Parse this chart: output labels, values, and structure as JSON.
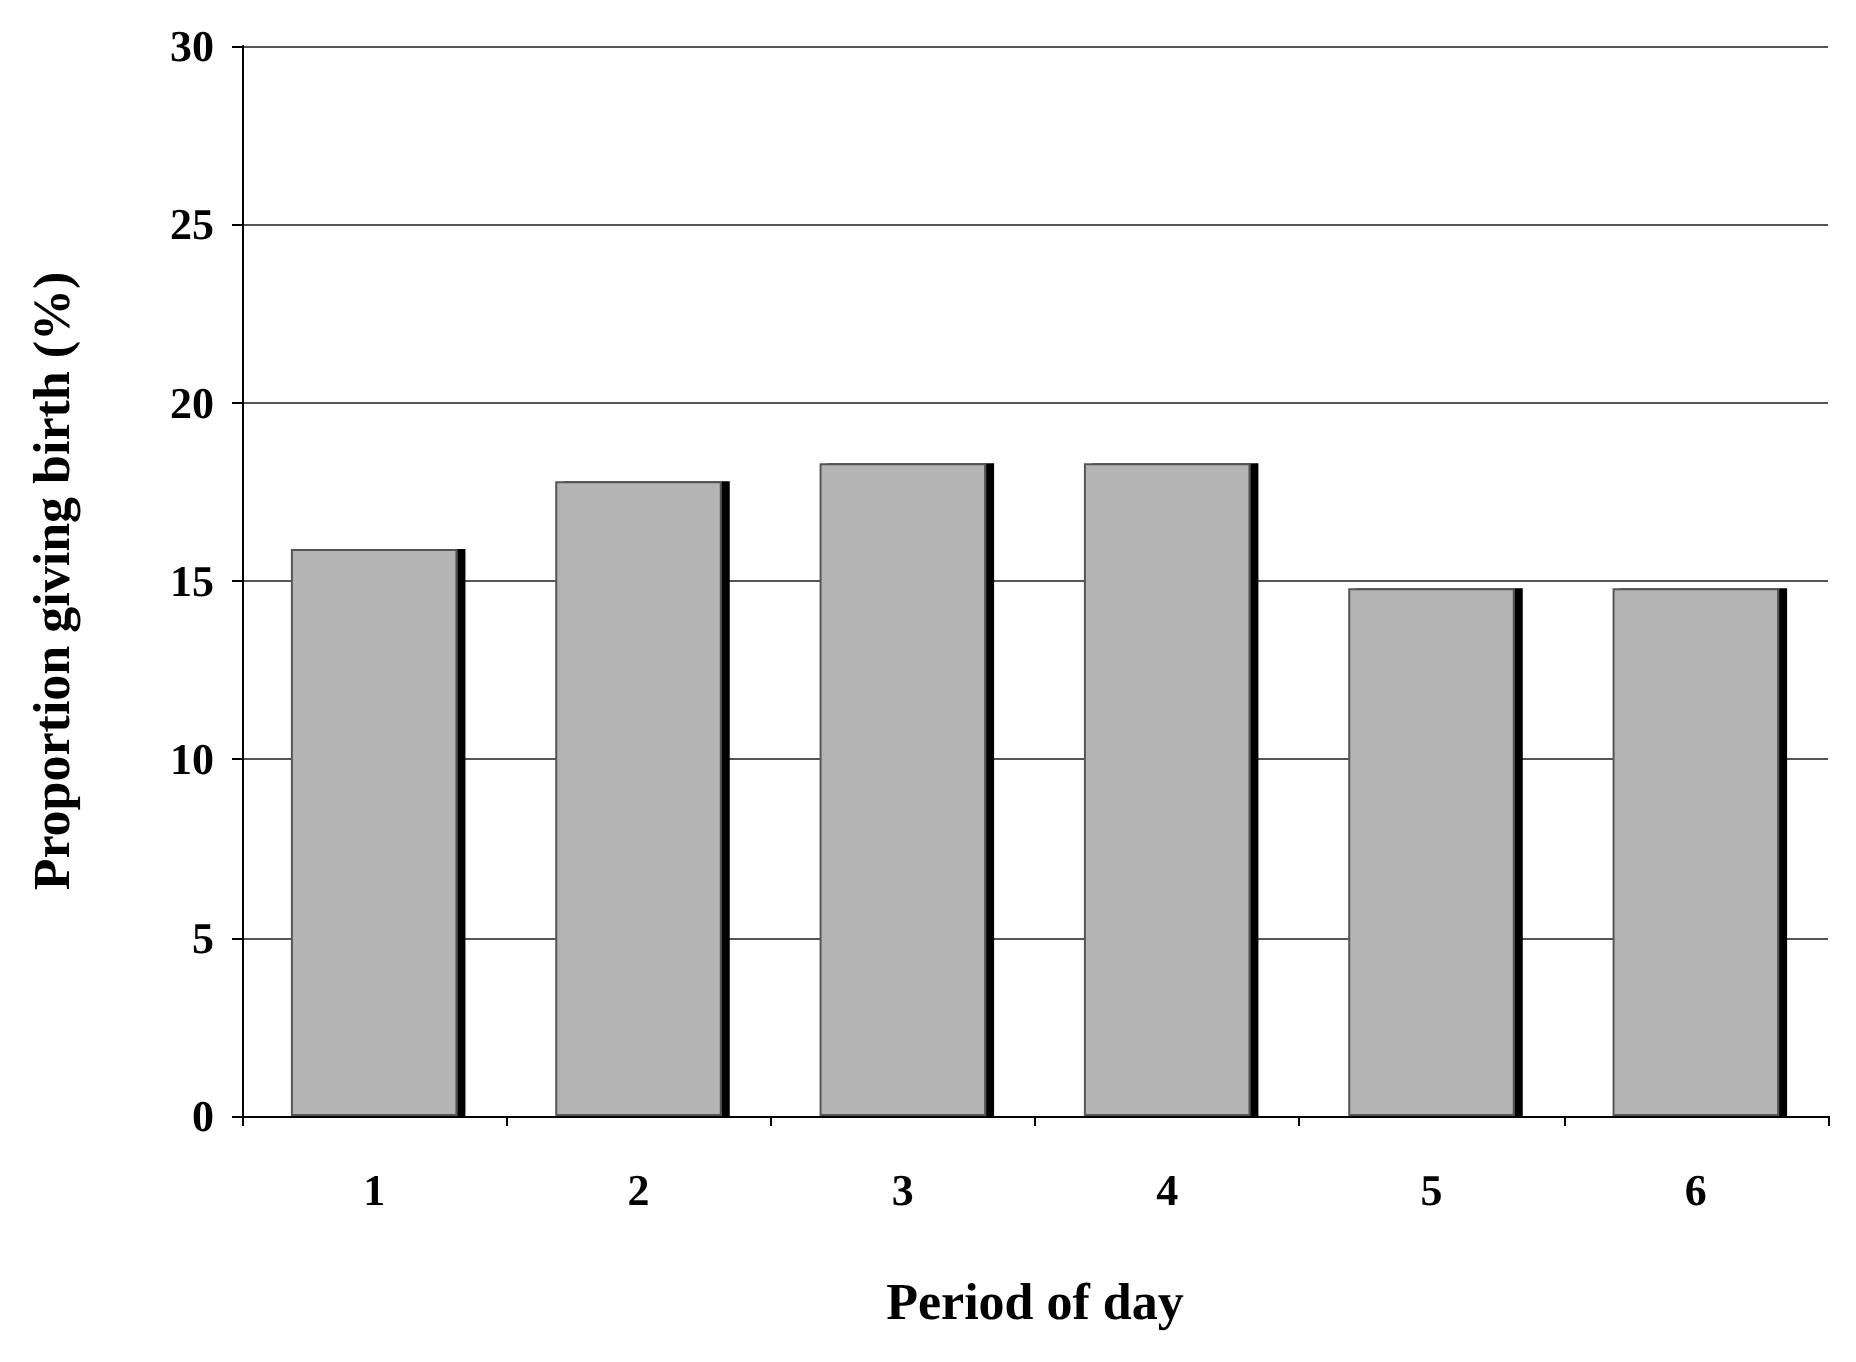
{
  "chart_data": {
    "type": "bar",
    "xlabel": "Period of day",
    "ylabel": "Proportion giving birth (%)",
    "categories": [
      "1",
      "2",
      "3",
      "4",
      "5",
      "6"
    ],
    "values": [
      15.9,
      17.8,
      18.3,
      18.3,
      14.8,
      14.8
    ],
    "color": "#b4b4b4",
    "ylim": [
      0,
      30
    ],
    "yticks": [
      0,
      5,
      10,
      15,
      20,
      25,
      30
    ],
    "grid": "y"
  }
}
